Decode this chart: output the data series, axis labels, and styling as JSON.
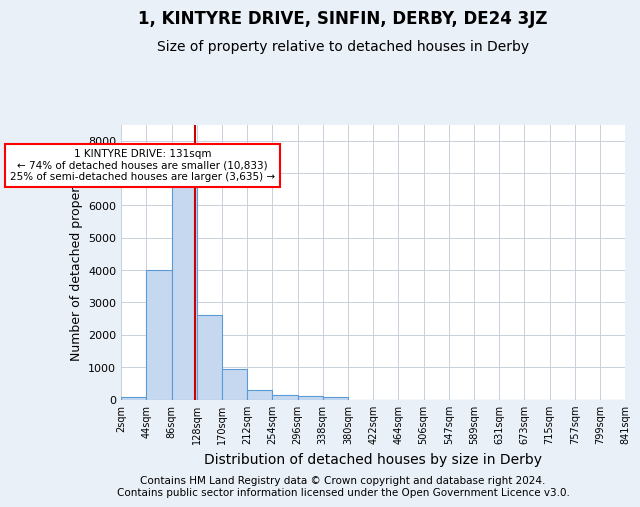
{
  "title_line1": "1, KINTYRE DRIVE, SINFIN, DERBY, DE24 3JZ",
  "title_line2": "Size of property relative to detached houses in Derby",
  "xlabel": "Distribution of detached houses by size in Derby",
  "ylabel": "Number of detached properties",
  "footnote": "Contains HM Land Registry data © Crown copyright and database right 2024.\nContains public sector information licensed under the Open Government Licence v3.0.",
  "bin_labels": [
    "2sqm",
    "44sqm",
    "86sqm",
    "128sqm",
    "170sqm",
    "212sqm",
    "254sqm",
    "296sqm",
    "338sqm",
    "380sqm",
    "422sqm",
    "464sqm",
    "506sqm",
    "547sqm",
    "589sqm",
    "631sqm",
    "673sqm",
    "715sqm",
    "757sqm",
    "799sqm",
    "841sqm"
  ],
  "bar_values": [
    75,
    4000,
    6600,
    2600,
    950,
    300,
    130,
    110,
    90,
    0,
    0,
    0,
    0,
    0,
    0,
    0,
    0,
    0,
    0,
    0
  ],
  "bar_color": "#c5d8f0",
  "bar_edge_color": "#5b9bd5",
  "annotation_text": "1 KINTYRE DRIVE: 131sqm\n← 74% of detached houses are smaller (10,833)\n25% of semi-detached houses are larger (3,635) →",
  "annotation_box_color": "white",
  "annotation_box_edge_color": "red",
  "red_line_color": "#cc0000",
  "red_line_x": 2.45,
  "ylim": [
    0,
    8500
  ],
  "yticks": [
    0,
    1000,
    2000,
    3000,
    4000,
    5000,
    6000,
    7000,
    8000
  ],
  "background_color": "#eaf0f8",
  "plot_bg_color": "white",
  "grid_color": "#c8d0dc",
  "title1_fontsize": 12,
  "title2_fontsize": 10,
  "xlabel_fontsize": 10,
  "ylabel_fontsize": 9,
  "footnote_fontsize": 7.5,
  "tick_fontsize": 7,
  "ytick_fontsize": 8
}
